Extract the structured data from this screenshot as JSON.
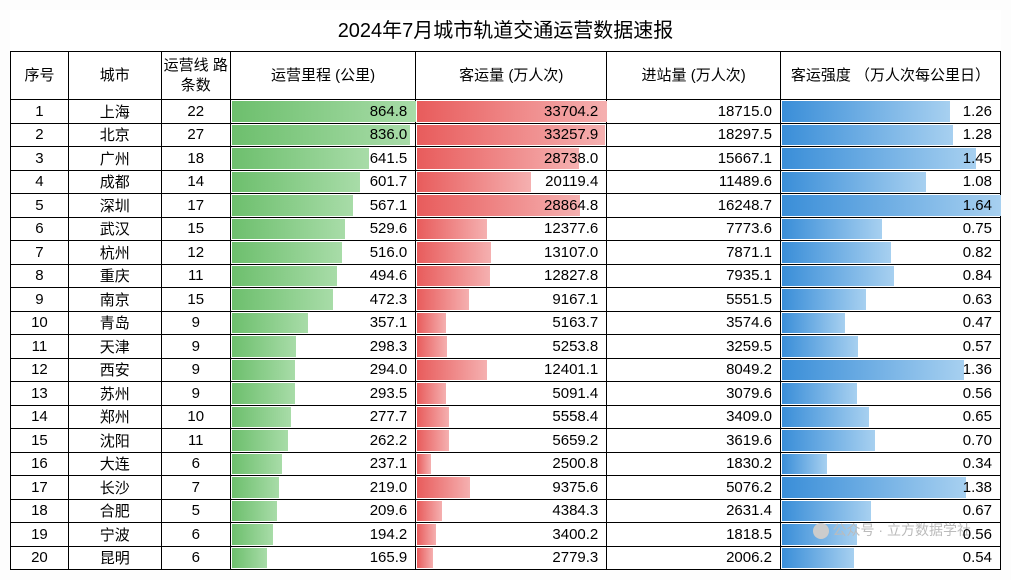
{
  "title": "2024年7月城市轨道交通运营数据速报",
  "columns": {
    "rank": "序号",
    "city": "城市",
    "lines": "运营线\n路条数",
    "mileage": "运营里程\n(公里)",
    "passenger": "客运量\n(万人次)",
    "entry": "进站量\n(万人次)",
    "intensity": "客运强度\n（万人次每公里日）"
  },
  "style": {
    "mileage_bar": {
      "color_start": "#6dbf6d",
      "color_end": "#a8dca8",
      "max": 864.8
    },
    "passenger_bar": {
      "color_start": "#e85c5c",
      "color_end": "#f5b0b0",
      "max": 33704.2
    },
    "intensity_bar": {
      "color_start": "#3a8ed8",
      "color_end": "#a7d0f0",
      "max": 1.64
    },
    "border_color": "#000000",
    "background_color": "#ffffff",
    "font_size_header": 15,
    "font_size_cell": 15,
    "title_fontsize": 20
  },
  "rows": [
    {
      "rank": 1,
      "city": "上海",
      "lines": 22,
      "mileage": 864.8,
      "passenger": 33704.2,
      "entry": 18715.0,
      "intensity": 1.26
    },
    {
      "rank": 2,
      "city": "北京",
      "lines": 27,
      "mileage": 836.0,
      "passenger": 33257.9,
      "entry": 18297.5,
      "intensity": 1.28
    },
    {
      "rank": 3,
      "city": "广州",
      "lines": 18,
      "mileage": 641.5,
      "passenger": 28738.0,
      "entry": 15667.1,
      "intensity": 1.45
    },
    {
      "rank": 4,
      "city": "成都",
      "lines": 14,
      "mileage": 601.7,
      "passenger": 20119.4,
      "entry": 11489.6,
      "intensity": 1.08
    },
    {
      "rank": 5,
      "city": "深圳",
      "lines": 17,
      "mileage": 567.1,
      "passenger": 28864.8,
      "entry": 16248.7,
      "intensity": 1.64
    },
    {
      "rank": 6,
      "city": "武汉",
      "lines": 15,
      "mileage": 529.6,
      "passenger": 12377.6,
      "entry": 7773.6,
      "intensity": 0.75
    },
    {
      "rank": 7,
      "city": "杭州",
      "lines": 12,
      "mileage": 516.0,
      "passenger": 13107.0,
      "entry": 7871.1,
      "intensity": 0.82
    },
    {
      "rank": 8,
      "city": "重庆",
      "lines": 11,
      "mileage": 494.6,
      "passenger": 12827.8,
      "entry": 7935.1,
      "intensity": 0.84
    },
    {
      "rank": 9,
      "city": "南京",
      "lines": 15,
      "mileage": 472.3,
      "passenger": 9167.1,
      "entry": 5551.5,
      "intensity": 0.63
    },
    {
      "rank": 10,
      "city": "青岛",
      "lines": 9,
      "mileage": 357.1,
      "passenger": 5163.7,
      "entry": 3574.6,
      "intensity": 0.47
    },
    {
      "rank": 11,
      "city": "天津",
      "lines": 9,
      "mileage": 298.3,
      "passenger": 5253.8,
      "entry": 3259.5,
      "intensity": 0.57
    },
    {
      "rank": 12,
      "city": "西安",
      "lines": 9,
      "mileage": 294.0,
      "passenger": 12401.1,
      "entry": 8049.2,
      "intensity": 1.36
    },
    {
      "rank": 13,
      "city": "苏州",
      "lines": 9,
      "mileage": 293.5,
      "passenger": 5091.4,
      "entry": 3079.6,
      "intensity": 0.56
    },
    {
      "rank": 14,
      "city": "郑州",
      "lines": 10,
      "mileage": 277.7,
      "passenger": 5558.4,
      "entry": 3409.0,
      "intensity": 0.65
    },
    {
      "rank": 15,
      "city": "沈阳",
      "lines": 11,
      "mileage": 262.2,
      "passenger": 5659.2,
      "entry": 3619.6,
      "intensity": 0.7
    },
    {
      "rank": 16,
      "city": "大连",
      "lines": 6,
      "mileage": 237.1,
      "passenger": 2500.8,
      "entry": 1830.2,
      "intensity": 0.34
    },
    {
      "rank": 17,
      "city": "长沙",
      "lines": 7,
      "mileage": 219.0,
      "passenger": 9375.6,
      "entry": 5076.2,
      "intensity": 1.38
    },
    {
      "rank": 18,
      "city": "合肥",
      "lines": 5,
      "mileage": 209.6,
      "passenger": 4384.3,
      "entry": 2631.4,
      "intensity": 0.67
    },
    {
      "rank": 19,
      "city": "宁波",
      "lines": 6,
      "mileage": 194.2,
      "passenger": 3400.2,
      "entry": 1818.5,
      "intensity": 0.56
    },
    {
      "rank": 20,
      "city": "昆明",
      "lines": 6,
      "mileage": 165.9,
      "passenger": 2779.3,
      "entry": 2006.2,
      "intensity": 0.54
    }
  ],
  "watermark": "公众号 · 立方数据学社"
}
